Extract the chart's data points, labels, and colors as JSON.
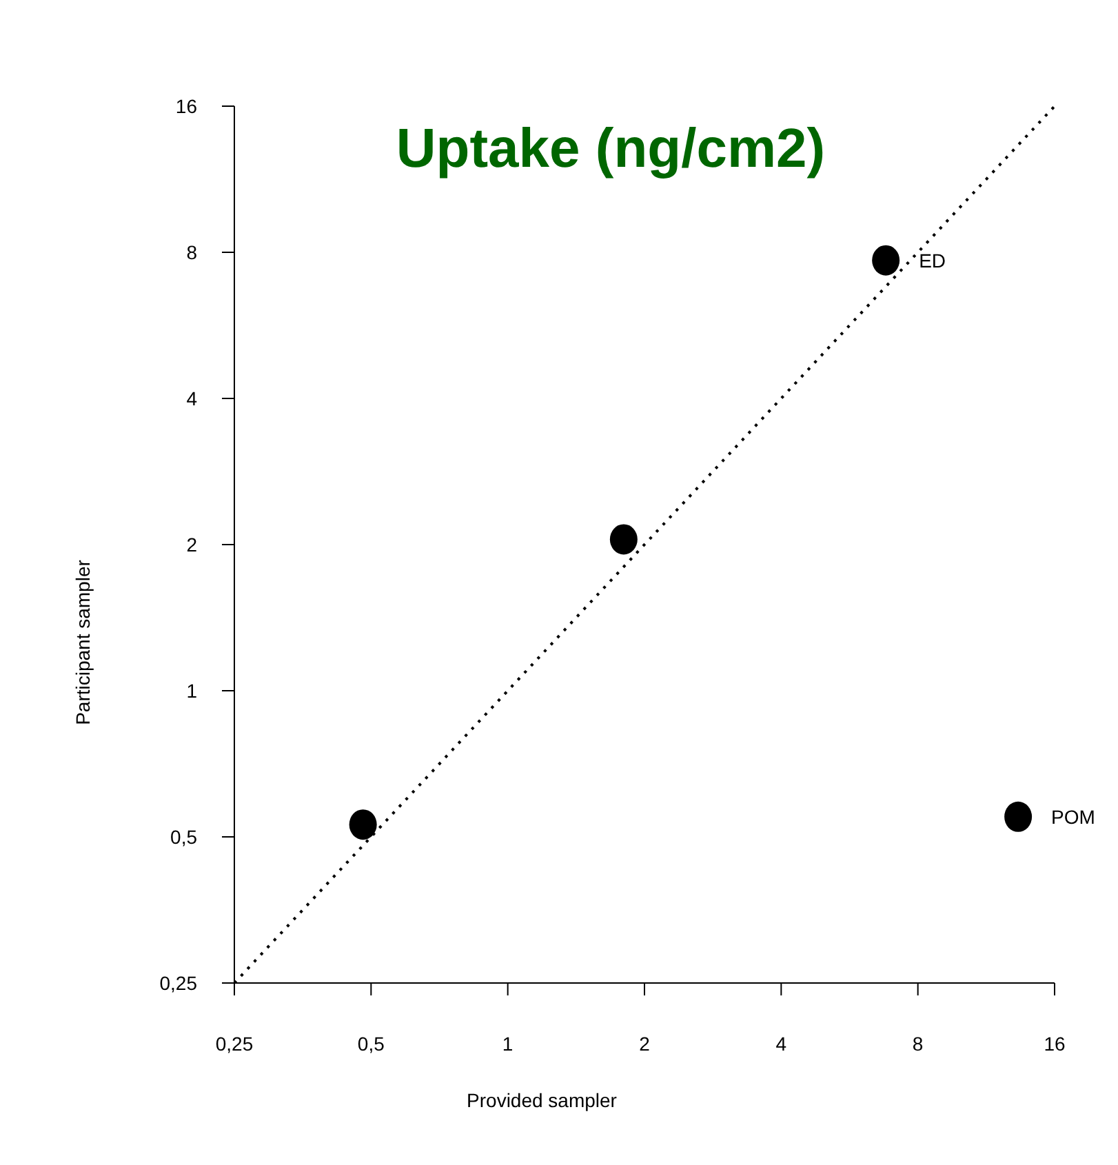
{
  "chart_data": {
    "type": "scatter",
    "title": "Uptake (ng/cm2)",
    "xlabel": "Provided sampler",
    "ylabel": "Participant sampler",
    "log": "xy",
    "grid": false,
    "legend": false,
    "xlim": [
      0.25,
      16
    ],
    "ylim": [
      0.25,
      16
    ],
    "xticks": [
      {
        "value": 0.25,
        "label": "0,25"
      },
      {
        "value": 0.5,
        "label": "0,5"
      },
      1,
      2,
      4,
      8,
      16
    ],
    "yticks": [
      {
        "value": 0.25,
        "label": "0,25"
      },
      {
        "value": 0.5,
        "label": "0,5"
      },
      1,
      2,
      4,
      8,
      16
    ],
    "series": [
      {
        "color": "#000000",
        "marker": "circle",
        "x": [
          0.48,
          1.8,
          6.8,
          13.3
        ],
        "values": [
          0.53,
          2.05,
          7.7,
          0.55
        ]
      },
      {
        "type": "line",
        "color": "#000000",
        "line_style": "dotted",
        "x": [
          0.25,
          16
        ],
        "values": [
          0.25,
          16
        ]
      }
    ],
    "annotations": [
      {
        "text": "ED",
        "x": 6.8,
        "y": 7.7
      },
      {
        "text": "POM",
        "x": 13.3,
        "y": 0.55
      }
    ]
  }
}
